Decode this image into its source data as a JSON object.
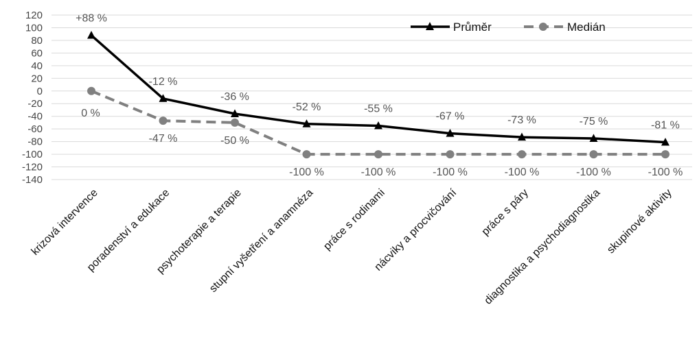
{
  "chart_data": {
    "type": "line",
    "title": "",
    "xlabel": "",
    "ylabel": "",
    "ylim": [
      -140,
      120
    ],
    "yticks": [
      120,
      100,
      80,
      60,
      40,
      20,
      0,
      -20,
      -40,
      -60,
      -80,
      -100,
      -120,
      -140
    ],
    "grid": true,
    "legend_position": "top-right",
    "categories": [
      "krizová intervence",
      "poradenství a edukace",
      "psychoterapie a terapie",
      "stupní vyšetření a anamnéza",
      "práce s rodinami",
      "nácviky a procvičování",
      "práce s páry",
      "diagnostika a psychodiagnostika",
      "skupinové aktivity"
    ],
    "series": [
      {
        "name": "Průměr",
        "values": [
          88,
          -12,
          -36,
          -52,
          -55,
          -67,
          -73,
          -75,
          -81
        ],
        "labels": [
          "+88 %",
          "-12 %",
          "-36 %",
          "-52 %",
          "-55 %",
          "-67 %",
          "-73 %",
          "-75 %",
          "-81 %"
        ],
        "color": "#000000",
        "style": "solid",
        "marker": "triangle"
      },
      {
        "name": "Medián",
        "values": [
          0,
          -47,
          -50,
          -100,
          -100,
          -100,
          -100,
          -100,
          -100
        ],
        "labels": [
          "0 %",
          "-47 %",
          "-50 %",
          "-100 %",
          "-100 %",
          "-100 %",
          "-100 %",
          "-100 %",
          "-100 %"
        ],
        "color": "#808080",
        "style": "dashed",
        "marker": "circle"
      }
    ]
  }
}
